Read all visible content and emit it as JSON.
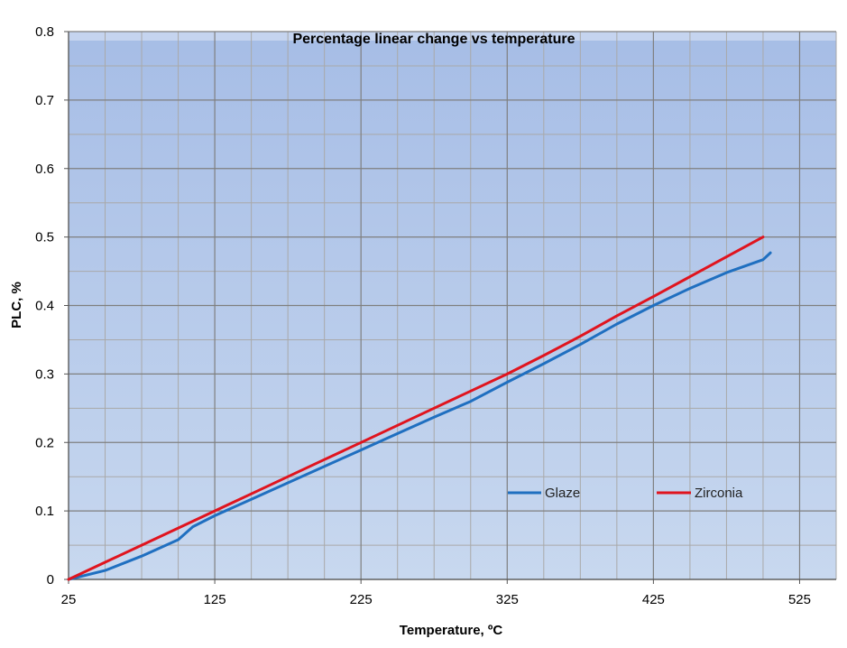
{
  "chart_data": {
    "type": "line",
    "title": "Percentage linear change vs temperature",
    "xlabel": "Temperature, ºC",
    "ylabel": "PLC, %",
    "xlim": [
      25,
      550
    ],
    "ylim": [
      0,
      0.8
    ],
    "x_ticks": [
      25,
      125,
      225,
      325,
      425,
      525
    ],
    "x_tick_labels": [
      "25",
      "125",
      "225",
      "325",
      "425",
      "525"
    ],
    "x_minor_step": 25,
    "y_ticks": [
      0,
      0.1,
      0.2,
      0.3,
      0.4,
      0.5,
      0.6,
      0.7,
      0.8
    ],
    "y_tick_labels": [
      "0",
      "0.1",
      "0.2",
      "0.3",
      "0.4",
      "0.5",
      "0.6",
      "0.7",
      "0.8"
    ],
    "y_minor_step": 0.05,
    "grid": true,
    "legend_position": "lower-right",
    "plot_background": [
      "#a6bde6",
      "#c8d8ef"
    ],
    "series": [
      {
        "name": "Glaze",
        "color": "#1f6fc0",
        "x": [
          25,
          50,
          75,
          100,
          110,
          125,
          150,
          175,
          200,
          225,
          250,
          275,
          300,
          325,
          350,
          375,
          400,
          425,
          450,
          475,
          500,
          505
        ],
        "y": [
          0,
          0.013,
          0.034,
          0.058,
          0.077,
          0.093,
          0.117,
          0.141,
          0.165,
          0.189,
          0.213,
          0.237,
          0.26,
          0.288,
          0.315,
          0.343,
          0.373,
          0.4,
          0.425,
          0.448,
          0.467,
          0.477
        ]
      },
      {
        "name": "Zirconia",
        "color": "#e0141e",
        "x": [
          25,
          50,
          75,
          100,
          125,
          150,
          175,
          200,
          225,
          250,
          275,
          300,
          325,
          350,
          375,
          400,
          425,
          450,
          475,
          500
        ],
        "y": [
          0,
          0.025,
          0.05,
          0.075,
          0.1,
          0.125,
          0.15,
          0.175,
          0.2,
          0.225,
          0.25,
          0.275,
          0.3,
          0.327,
          0.355,
          0.385,
          0.413,
          0.442,
          0.471,
          0.5
        ]
      }
    ]
  }
}
